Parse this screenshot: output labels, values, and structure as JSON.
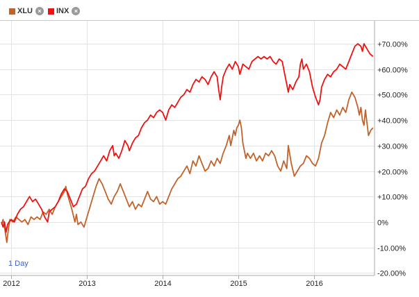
{
  "legend": {
    "items": [
      {
        "label": "XLU",
        "color": "#c0622a",
        "remove": "×"
      },
      {
        "label": "INX",
        "color": "#ee1111",
        "remove": "×"
      }
    ]
  },
  "period": "1 Day",
  "chart_data": {
    "type": "line",
    "title": "",
    "xlabel": "",
    "ylabel": "",
    "x_axis_labels": [
      "2012",
      "2013",
      "2014",
      "2015",
      "2016"
    ],
    "y_tick_labels": [
      "+70.00%",
      "+60.00%",
      "+50.00%",
      "+40.00%",
      "+30.00%",
      "+20.00%",
      "+10.00%",
      "0%",
      "-10.00%",
      "-20.00%"
    ],
    "y_ticks": [
      70,
      60,
      50,
      40,
      30,
      20,
      10,
      0,
      -10,
      -20
    ],
    "ylim": [
      -21,
      79
    ],
    "xlim": [
      2011.85,
      2016.8
    ],
    "grid": true,
    "legend_position": "top-left",
    "series": [
      {
        "name": "XLU",
        "color": "#c0622a",
        "points": [
          [
            2011.87,
            -1
          ],
          [
            2011.89,
            1
          ],
          [
            2011.91,
            -2
          ],
          [
            2011.94,
            -8
          ],
          [
            2011.96,
            -3
          ],
          [
            2011.98,
            1
          ],
          [
            2012.02,
            0
          ],
          [
            2012.06,
            2
          ],
          [
            2012.1,
            1
          ],
          [
            2012.14,
            0
          ],
          [
            2012.18,
            1
          ],
          [
            2012.22,
            -1
          ],
          [
            2012.26,
            2
          ],
          [
            2012.3,
            1
          ],
          [
            2012.34,
            2
          ],
          [
            2012.38,
            1
          ],
          [
            2012.42,
            4
          ],
          [
            2012.46,
            3
          ],
          [
            2012.5,
            5
          ],
          [
            2012.54,
            3
          ],
          [
            2012.58,
            6
          ],
          [
            2012.62,
            8
          ],
          [
            2012.66,
            10
          ],
          [
            2012.7,
            12
          ],
          [
            2012.72,
            14
          ],
          [
            2012.74,
            11
          ],
          [
            2012.76,
            9
          ],
          [
            2012.8,
            5
          ],
          [
            2012.84,
            0
          ],
          [
            2012.86,
            3
          ],
          [
            2012.88,
            -1
          ],
          [
            2012.92,
            0
          ],
          [
            2012.96,
            -2
          ],
          [
            2013.0,
            2
          ],
          [
            2013.04,
            6
          ],
          [
            2013.08,
            10
          ],
          [
            2013.12,
            14
          ],
          [
            2013.16,
            17
          ],
          [
            2013.2,
            15
          ],
          [
            2013.24,
            12
          ],
          [
            2013.28,
            9
          ],
          [
            2013.32,
            7
          ],
          [
            2013.36,
            10
          ],
          [
            2013.4,
            12
          ],
          [
            2013.44,
            15
          ],
          [
            2013.48,
            12
          ],
          [
            2013.52,
            9
          ],
          [
            2013.56,
            6
          ],
          [
            2013.6,
            8
          ],
          [
            2013.64,
            5
          ],
          [
            2013.68,
            7
          ],
          [
            2013.72,
            6
          ],
          [
            2013.76,
            9
          ],
          [
            2013.8,
            12
          ],
          [
            2013.84,
            9
          ],
          [
            2013.88,
            8
          ],
          [
            2013.92,
            10
          ],
          [
            2013.96,
            7
          ],
          [
            2014.0,
            8
          ],
          [
            2014.04,
            7
          ],
          [
            2014.08,
            10
          ],
          [
            2014.12,
            13
          ],
          [
            2014.16,
            15
          ],
          [
            2014.2,
            17
          ],
          [
            2014.24,
            18
          ],
          [
            2014.28,
            20
          ],
          [
            2014.32,
            22
          ],
          [
            2014.36,
            19
          ],
          [
            2014.4,
            24
          ],
          [
            2014.44,
            22
          ],
          [
            2014.48,
            26
          ],
          [
            2014.52,
            23
          ],
          [
            2014.56,
            20
          ],
          [
            2014.6,
            21
          ],
          [
            2014.64,
            24
          ],
          [
            2014.68,
            22
          ],
          [
            2014.72,
            25
          ],
          [
            2014.76,
            23
          ],
          [
            2014.8,
            27
          ],
          [
            2014.84,
            30
          ],
          [
            2014.88,
            34
          ],
          [
            2014.9,
            30
          ],
          [
            2014.92,
            33
          ],
          [
            2014.94,
            36
          ],
          [
            2014.96,
            34
          ],
          [
            2014.98,
            37
          ],
          [
            2015.0,
            38
          ],
          [
            2015.02,
            40
          ],
          [
            2015.04,
            37
          ],
          [
            2015.06,
            31
          ],
          [
            2015.08,
            28
          ],
          [
            2015.1,
            25
          ],
          [
            2015.12,
            27
          ],
          [
            2015.16,
            25
          ],
          [
            2015.2,
            27
          ],
          [
            2015.24,
            24
          ],
          [
            2015.28,
            26
          ],
          [
            2015.32,
            24
          ],
          [
            2015.36,
            27
          ],
          [
            2015.4,
            26
          ],
          [
            2015.44,
            28
          ],
          [
            2015.48,
            26
          ],
          [
            2015.52,
            22
          ],
          [
            2015.56,
            20
          ],
          [
            2015.6,
            24
          ],
          [
            2015.64,
            21
          ],
          [
            2015.66,
            30
          ],
          [
            2015.7,
            23
          ],
          [
            2015.74,
            18
          ],
          [
            2015.78,
            20
          ],
          [
            2015.82,
            22
          ],
          [
            2015.86,
            23
          ],
          [
            2015.9,
            26
          ],
          [
            2015.94,
            25
          ],
          [
            2015.98,
            23
          ],
          [
            2016.02,
            22
          ],
          [
            2016.06,
            25
          ],
          [
            2016.1,
            31
          ],
          [
            2016.14,
            34
          ],
          [
            2016.18,
            39
          ],
          [
            2016.22,
            43
          ],
          [
            2016.26,
            41
          ],
          [
            2016.3,
            44
          ],
          [
            2016.34,
            42
          ],
          [
            2016.38,
            45
          ],
          [
            2016.42,
            43
          ],
          [
            2016.46,
            48
          ],
          [
            2016.5,
            51
          ],
          [
            2016.54,
            49
          ],
          [
            2016.56,
            47
          ],
          [
            2016.58,
            45
          ],
          [
            2016.6,
            42
          ],
          [
            2016.62,
            45
          ],
          [
            2016.64,
            40
          ],
          [
            2016.66,
            38
          ],
          [
            2016.68,
            44
          ],
          [
            2016.7,
            39
          ],
          [
            2016.72,
            34
          ],
          [
            2016.75,
            36
          ],
          [
            2016.78,
            37
          ]
        ]
      },
      {
        "name": "INX",
        "color": "#ee1111",
        "points": [
          [
            2011.87,
            0
          ],
          [
            2011.89,
            -2
          ],
          [
            2011.91,
            0
          ],
          [
            2011.93,
            -4
          ],
          [
            2011.95,
            -1
          ],
          [
            2011.97,
            0
          ],
          [
            2012.0,
            1
          ],
          [
            2012.04,
            0
          ],
          [
            2012.08,
            3
          ],
          [
            2012.12,
            5
          ],
          [
            2012.16,
            6
          ],
          [
            2012.2,
            8
          ],
          [
            2012.24,
            10
          ],
          [
            2012.28,
            8
          ],
          [
            2012.32,
            9
          ],
          [
            2012.36,
            7
          ],
          [
            2012.4,
            5
          ],
          [
            2012.44,
            2
          ],
          [
            2012.48,
            0
          ],
          [
            2012.5,
            4
          ],
          [
            2012.54,
            5
          ],
          [
            2012.58,
            6
          ],
          [
            2012.62,
            8
          ],
          [
            2012.66,
            11
          ],
          [
            2012.7,
            13
          ],
          [
            2012.74,
            12
          ],
          [
            2012.78,
            9
          ],
          [
            2012.82,
            6
          ],
          [
            2012.86,
            7
          ],
          [
            2012.9,
            10
          ],
          [
            2012.94,
            13
          ],
          [
            2012.98,
            14
          ],
          [
            2013.02,
            17
          ],
          [
            2013.06,
            19
          ],
          [
            2013.1,
            20
          ],
          [
            2013.14,
            22
          ],
          [
            2013.18,
            24
          ],
          [
            2013.22,
            26
          ],
          [
            2013.26,
            24
          ],
          [
            2013.3,
            28
          ],
          [
            2013.34,
            30
          ],
          [
            2013.36,
            26
          ],
          [
            2013.38,
            27
          ],
          [
            2013.42,
            25
          ],
          [
            2013.46,
            28
          ],
          [
            2013.5,
            32
          ],
          [
            2013.54,
            30
          ],
          [
            2013.56,
            28
          ],
          [
            2013.6,
            31
          ],
          [
            2013.64,
            33
          ],
          [
            2013.68,
            34
          ],
          [
            2013.72,
            37
          ],
          [
            2013.76,
            39
          ],
          [
            2013.8,
            40
          ],
          [
            2013.84,
            42
          ],
          [
            2013.88,
            41
          ],
          [
            2013.92,
            43
          ],
          [
            2013.96,
            44
          ],
          [
            2014.0,
            43
          ],
          [
            2014.04,
            40
          ],
          [
            2014.08,
            44
          ],
          [
            2014.12,
            46
          ],
          [
            2014.16,
            45
          ],
          [
            2014.2,
            47
          ],
          [
            2014.24,
            49
          ],
          [
            2014.28,
            50
          ],
          [
            2014.32,
            52
          ],
          [
            2014.36,
            51
          ],
          [
            2014.4,
            54
          ],
          [
            2014.44,
            56
          ],
          [
            2014.48,
            55
          ],
          [
            2014.52,
            57
          ],
          [
            2014.56,
            56
          ],
          [
            2014.6,
            54
          ],
          [
            2014.64,
            57
          ],
          [
            2014.68,
            59
          ],
          [
            2014.72,
            57
          ],
          [
            2014.74,
            52
          ],
          [
            2014.76,
            48
          ],
          [
            2014.78,
            53
          ],
          [
            2014.8,
            57
          ],
          [
            2014.84,
            60
          ],
          [
            2014.88,
            62
          ],
          [
            2014.92,
            60
          ],
          [
            2014.96,
            63
          ],
          [
            2015.0,
            61
          ],
          [
            2015.02,
            58
          ],
          [
            2015.06,
            62
          ],
          [
            2015.1,
            61
          ],
          [
            2015.14,
            60
          ],
          [
            2015.18,
            63
          ],
          [
            2015.22,
            64
          ],
          [
            2015.26,
            65
          ],
          [
            2015.3,
            64
          ],
          [
            2015.34,
            65
          ],
          [
            2015.38,
            64
          ],
          [
            2015.42,
            65
          ],
          [
            2015.46,
            63
          ],
          [
            2015.5,
            62
          ],
          [
            2015.54,
            64
          ],
          [
            2015.58,
            63
          ],
          [
            2015.62,
            57
          ],
          [
            2015.66,
            51
          ],
          [
            2015.68,
            54
          ],
          [
            2015.72,
            52
          ],
          [
            2015.76,
            55
          ],
          [
            2015.8,
            57
          ],
          [
            2015.82,
            62
          ],
          [
            2015.84,
            64
          ],
          [
            2015.86,
            60
          ],
          [
            2015.9,
            62
          ],
          [
            2015.94,
            59
          ],
          [
            2015.98,
            53
          ],
          [
            2016.02,
            49
          ],
          [
            2016.06,
            46
          ],
          [
            2016.08,
            48
          ],
          [
            2016.1,
            53
          ],
          [
            2016.14,
            56
          ],
          [
            2016.18,
            58
          ],
          [
            2016.22,
            57
          ],
          [
            2016.26,
            59
          ],
          [
            2016.3,
            60
          ],
          [
            2016.34,
            62
          ],
          [
            2016.38,
            61
          ],
          [
            2016.42,
            60
          ],
          [
            2016.46,
            63
          ],
          [
            2016.5,
            66
          ],
          [
            2016.54,
            69
          ],
          [
            2016.58,
            70
          ],
          [
            2016.62,
            69
          ],
          [
            2016.64,
            67
          ],
          [
            2016.66,
            70
          ],
          [
            2016.7,
            68
          ],
          [
            2016.74,
            66
          ],
          [
            2016.78,
            65
          ]
        ]
      }
    ]
  }
}
